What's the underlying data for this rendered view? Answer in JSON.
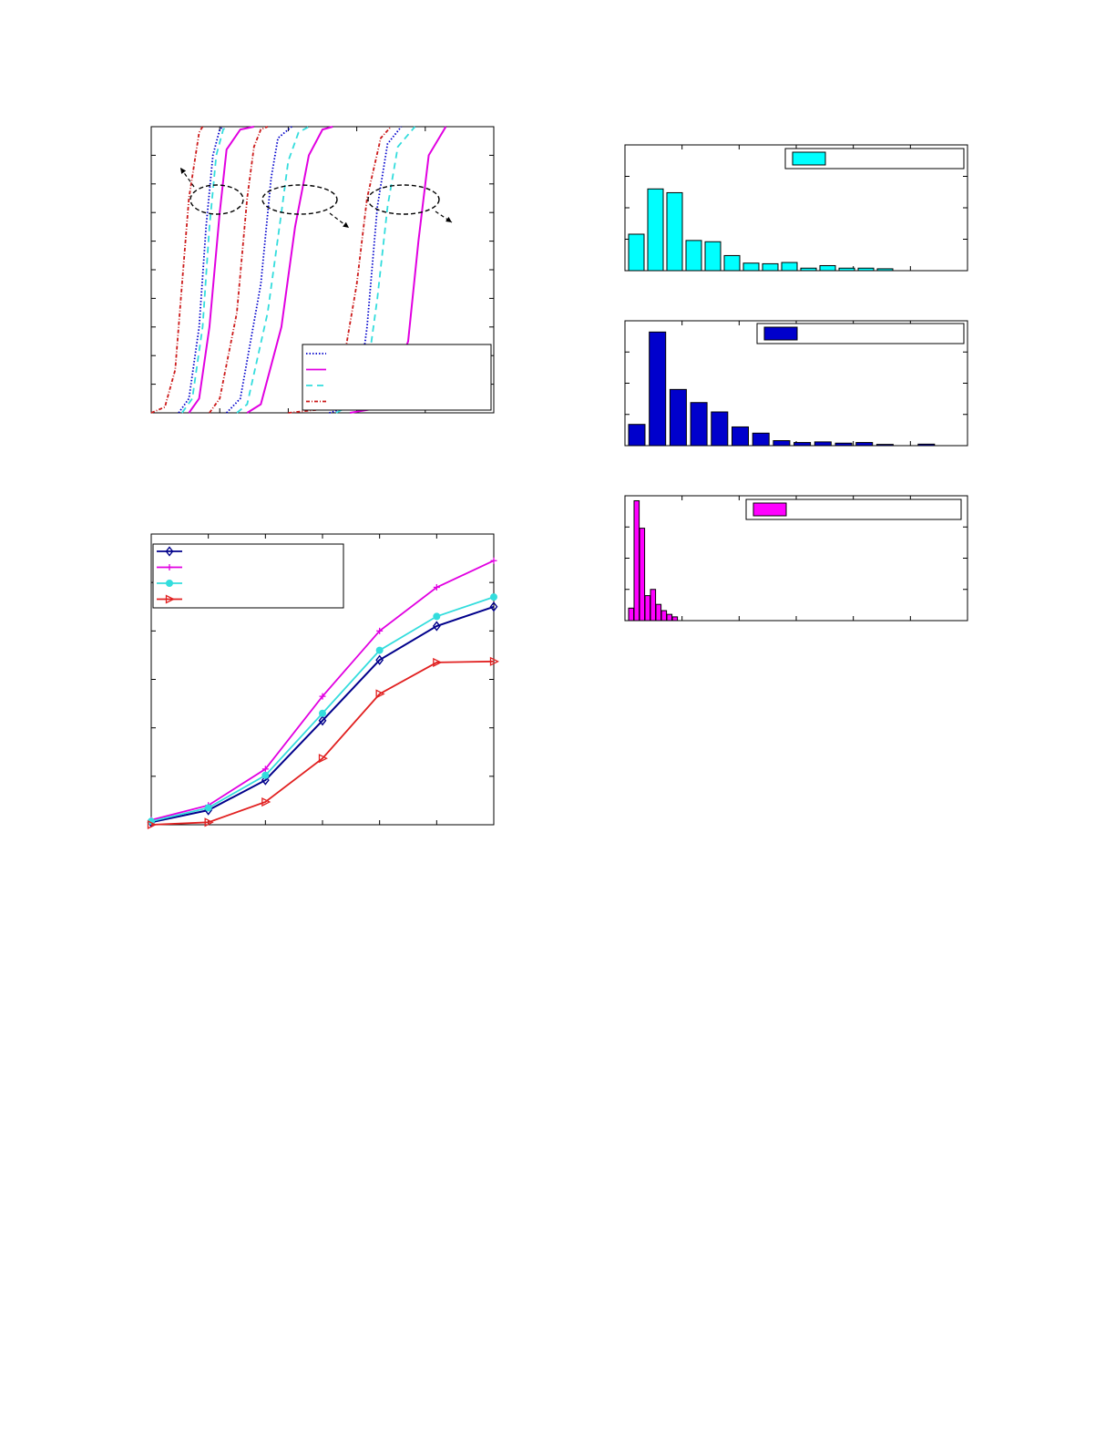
{
  "colors": {
    "blue": "#0000cc",
    "dark_blue": "#00008b",
    "magenta": "#ff00ff",
    "magenta_line": "#e100e1",
    "cyan": "#00ffff",
    "cyan_line": "#33dddd",
    "red": "#e12020",
    "dark_red": "#cc1a1a",
    "axis": "#000000"
  },
  "chart_data": [
    {
      "id": "cdf",
      "type": "line",
      "title": "",
      "xlabel": "",
      "ylabel": "",
      "xlim": [
        0,
        5
      ],
      "ylim": [
        0,
        1
      ],
      "grid": false,
      "legend_position": "bottom-right",
      "legend_entries": 4,
      "series": [
        {
          "group": 1,
          "style": "dash-dot",
          "color": "red",
          "points": [
            [
              0.0,
              0
            ],
            [
              0.2,
              0.02
            ],
            [
              0.35,
              0.15
            ],
            [
              0.45,
              0.45
            ],
            [
              0.55,
              0.75
            ],
            [
              0.7,
              0.98
            ],
            [
              0.75,
              1.0
            ]
          ]
        },
        {
          "group": 1,
          "style": "dotted",
          "color": "blue",
          "points": [
            [
              0.4,
              0
            ],
            [
              0.55,
              0.05
            ],
            [
              0.7,
              0.3
            ],
            [
              0.8,
              0.65
            ],
            [
              0.9,
              0.9
            ],
            [
              1.0,
              0.99
            ],
            [
              1.05,
              1.0
            ]
          ]
        },
        {
          "group": 1,
          "style": "dashed",
          "color": "cyan",
          "points": [
            [
              0.45,
              0
            ],
            [
              0.6,
              0.05
            ],
            [
              0.75,
              0.3
            ],
            [
              0.85,
              0.65
            ],
            [
              0.95,
              0.9
            ],
            [
              1.05,
              0.99
            ],
            [
              1.1,
              1.0
            ]
          ]
        },
        {
          "group": 1,
          "style": "solid",
          "color": "magenta",
          "points": [
            [
              0.55,
              0
            ],
            [
              0.7,
              0.05
            ],
            [
              0.85,
              0.3
            ],
            [
              1.0,
              0.7
            ],
            [
              1.1,
              0.92
            ],
            [
              1.3,
              0.99
            ],
            [
              1.5,
              1.0
            ]
          ]
        },
        {
          "group": 2,
          "style": "dash-dot",
          "color": "red",
          "points": [
            [
              0.85,
              0
            ],
            [
              1.0,
              0.05
            ],
            [
              1.25,
              0.35
            ],
            [
              1.4,
              0.75
            ],
            [
              1.5,
              0.93
            ],
            [
              1.6,
              0.99
            ],
            [
              1.7,
              1.0
            ]
          ]
        },
        {
          "group": 2,
          "style": "dotted",
          "color": "blue",
          "points": [
            [
              1.1,
              0
            ],
            [
              1.3,
              0.05
            ],
            [
              1.6,
              0.45
            ],
            [
              1.75,
              0.82
            ],
            [
              1.85,
              0.96
            ],
            [
              2.05,
              1.0
            ]
          ]
        },
        {
          "group": 2,
          "style": "dashed",
          "color": "cyan",
          "points": [
            [
              1.25,
              0
            ],
            [
              1.4,
              0.03
            ],
            [
              1.7,
              0.35
            ],
            [
              1.9,
              0.7
            ],
            [
              2.0,
              0.88
            ],
            [
              2.15,
              0.98
            ],
            [
              2.3,
              1.0
            ]
          ]
        },
        {
          "group": 2,
          "style": "solid",
          "color": "magenta",
          "points": [
            [
              1.4,
              0
            ],
            [
              1.6,
              0.03
            ],
            [
              1.9,
              0.3
            ],
            [
              2.1,
              0.65
            ],
            [
              2.3,
              0.9
            ],
            [
              2.5,
              0.99
            ],
            [
              2.65,
              1.0
            ]
          ]
        },
        {
          "group": 3,
          "style": "dash-dot",
          "color": "red",
          "points": [
            [
              2.0,
              0
            ],
            [
              2.4,
              0.01
            ],
            [
              2.75,
              0.1
            ],
            [
              3.0,
              0.45
            ],
            [
              3.15,
              0.75
            ],
            [
              3.35,
              0.96
            ],
            [
              3.5,
              1.0
            ]
          ]
        },
        {
          "group": 3,
          "style": "dotted",
          "color": "blue",
          "points": [
            [
              2.6,
              0
            ],
            [
              3.0,
              0.03
            ],
            [
              3.15,
              0.3
            ],
            [
              3.3,
              0.72
            ],
            [
              3.45,
              0.94
            ],
            [
              3.65,
              1.0
            ]
          ]
        },
        {
          "group": 3,
          "style": "dashed",
          "color": "cyan",
          "points": [
            [
              2.7,
              0
            ],
            [
              3.1,
              0.05
            ],
            [
              3.3,
              0.4
            ],
            [
              3.45,
              0.72
            ],
            [
              3.6,
              0.93
            ],
            [
              3.85,
              1.0
            ]
          ]
        },
        {
          "group": 3,
          "style": "solid",
          "color": "magenta",
          "points": [
            [
              2.9,
              0
            ],
            [
              3.4,
              0.02
            ],
            [
              3.75,
              0.25
            ],
            [
              3.9,
              0.6
            ],
            [
              4.05,
              0.9
            ],
            [
              4.3,
              1.0
            ]
          ]
        }
      ]
    },
    {
      "id": "lines",
      "type": "line",
      "title": "",
      "xlabel": "",
      "ylabel": "",
      "x": [
        1,
        2,
        3,
        4,
        5,
        6,
        7
      ],
      "xlim": [
        1,
        7
      ],
      "ylim": [
        0,
        6
      ],
      "grid": false,
      "legend_position": "top-left",
      "series": [
        {
          "marker": "diamond",
          "color": "dark_blue",
          "values": [
            0.05,
            0.3,
            0.92,
            2.15,
            3.4,
            4.1,
            4.5
          ]
        },
        {
          "marker": "plus",
          "color": "magenta",
          "values": [
            0.1,
            0.4,
            1.15,
            2.65,
            4.0,
            4.9,
            5.45
          ]
        },
        {
          "marker": "circle",
          "color": "cyan",
          "values": [
            0.07,
            0.35,
            1.02,
            2.3,
            3.6,
            4.3,
            4.7
          ]
        },
        {
          "marker": "triangle",
          "color": "red",
          "values": [
            0.0,
            0.05,
            0.47,
            1.37,
            2.7,
            3.35,
            3.37
          ]
        }
      ]
    },
    {
      "id": "hist1",
      "type": "bar",
      "title": "",
      "color": "cyan",
      "ylim": [
        0,
        1
      ],
      "legend_position": "top-right",
      "values": [
        0.29,
        0.65,
        0.62,
        0.24,
        0.23,
        0.12,
        0.06,
        0.055,
        0.065,
        0.02,
        0.04,
        0.02,
        0.02,
        0.015
      ]
    },
    {
      "id": "hist2",
      "type": "bar",
      "title": "",
      "color": "blue",
      "ylim": [
        0,
        1
      ],
      "legend_position": "top-right",
      "values": [
        0.17,
        0.91,
        0.45,
        0.345,
        0.27,
        0.15,
        0.1,
        0.04,
        0.025,
        0.03,
        0.02,
        0.025,
        0.01,
        0.0,
        0.012
      ]
    },
    {
      "id": "hist3",
      "type": "bar",
      "title": "",
      "color": "magenta",
      "ylim": [
        0,
        1
      ],
      "legend_position": "top-right",
      "values": [
        0.1,
        0.96,
        0.74,
        0.2,
        0.25,
        0.13,
        0.08,
        0.05,
        0.03
      ]
    }
  ]
}
